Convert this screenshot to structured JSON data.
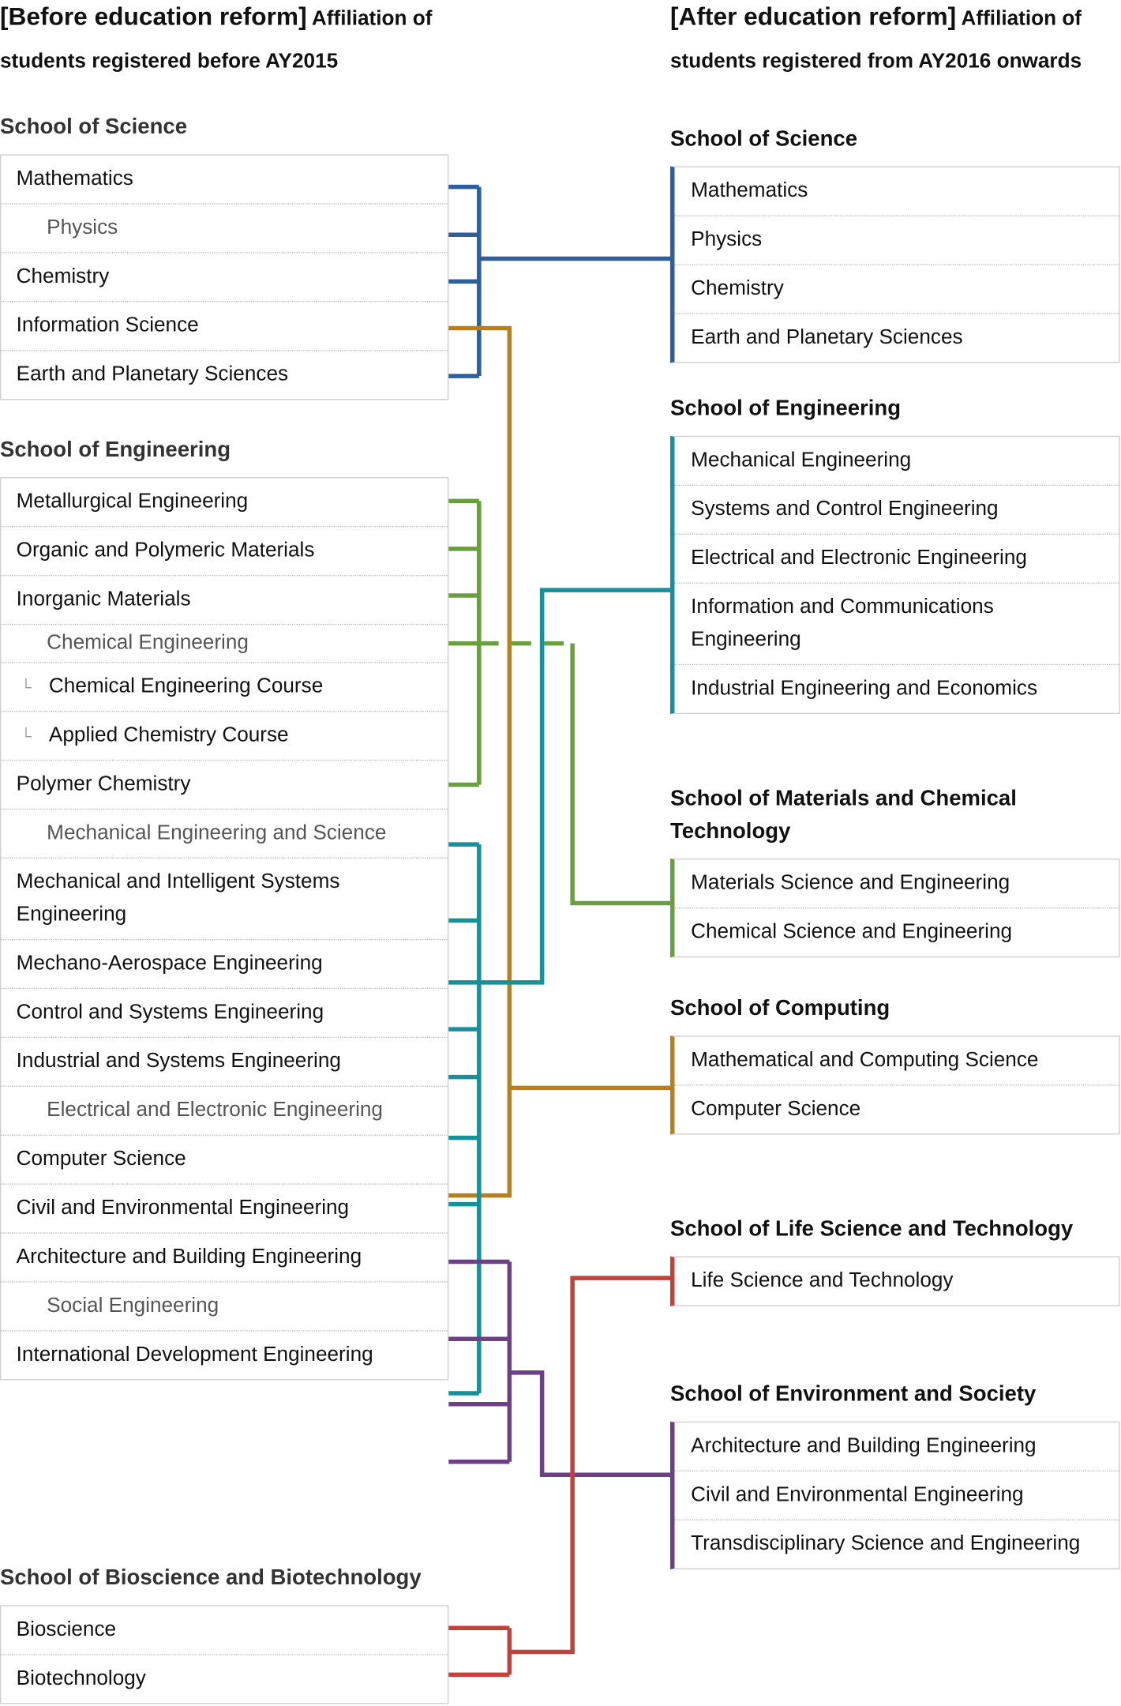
{
  "before": {
    "title_bracket": "[Before education reform]",
    "title_rest": " Affiliation of students registered before AY2015",
    "schools": [
      {
        "name": "School of Science",
        "items": [
          {
            "label": "Mathematics"
          },
          {
            "label": "Physics",
            "indent": true
          },
          {
            "label": "Chemistry"
          },
          {
            "label": "Information Science"
          },
          {
            "label": "Earth and Planetary Sciences"
          }
        ]
      },
      {
        "name": "School of Engineering",
        "items": [
          {
            "label": "Metallurgical Engineering"
          },
          {
            "label": "Organic and Polymeric Materials"
          },
          {
            "label": "Inorganic Materials"
          },
          {
            "label": "Chemical Engineering",
            "indent": true,
            "short": true
          },
          {
            "label": "Chemical Engineering Course",
            "sub": true
          },
          {
            "label": "Applied Chemistry Course",
            "sub": true
          },
          {
            "label": "Polymer Chemistry"
          },
          {
            "label": "Mechanical Engineering and Science",
            "indent": true
          },
          {
            "label": "Mechanical and Intelligent Systems Engineering"
          },
          {
            "label": "Mechano-Aerospace Engineering"
          },
          {
            "label": "Control and Systems Engineering"
          },
          {
            "label": "Industrial and Systems Engineering"
          },
          {
            "label": "Electrical and Electronic Engineering",
            "indent": true
          },
          {
            "label": "Computer Science"
          },
          {
            "label": "Civil and Environmental Engineering"
          },
          {
            "label": "Architecture and Building Engineering"
          },
          {
            "label": "Social Engineering",
            "indent": true
          },
          {
            "label": "International Development Engineering"
          }
        ]
      },
      {
        "name": "School of Bioscience and Biotechnology",
        "items": [
          {
            "label": "Bioscience"
          },
          {
            "label": "Biotechnology"
          }
        ]
      }
    ],
    "sub_mark": "└"
  },
  "after": {
    "title_bracket": "[After education reform]",
    "title_rest": " Affiliation of students registered from AY2016 onwards",
    "schools": [
      {
        "name": "School of Science",
        "color": "#2f5f9b",
        "items": [
          {
            "label": "Mathematics"
          },
          {
            "label": "Physics"
          },
          {
            "label": "Chemistry"
          },
          {
            "label": "Earth and Planetary Sciences"
          }
        ]
      },
      {
        "name": "School of Engineering",
        "color": "#17909a",
        "items": [
          {
            "label": "Mechanical Engineering"
          },
          {
            "label": "Systems and Control Engineering"
          },
          {
            "label": "Electrical and Electronic Engineering"
          },
          {
            "label": "Information and Communications Engineering"
          },
          {
            "label": "Industrial Engineering and Economics"
          }
        ]
      },
      {
        "name": "School of Materials and Chemical Technology",
        "color": "#6a9f40",
        "items": [
          {
            "label": "Materials Science and Engineering"
          },
          {
            "label": "Chemical Science and Engineering"
          }
        ]
      },
      {
        "name": "School of Computing",
        "color": "#b7801a",
        "items": [
          {
            "label": "Mathematical and Computing Science"
          },
          {
            "label": "Computer Science"
          }
        ]
      },
      {
        "name": "School of Life Science and Technology",
        "color": "#c2413b",
        "items": [
          {
            "label": "Life Science and Technology"
          }
        ]
      },
      {
        "name": "School of Environment and Society",
        "color": "#6c3f87",
        "items": [
          {
            "label": "Architecture and Building Engineering"
          },
          {
            "label": "Civil and Environmental Engineering"
          },
          {
            "label": "Transdisciplinary Science and Engineering"
          }
        ]
      }
    ]
  },
  "colors": {
    "science": "#2f5f9b",
    "computing": "#b7801a",
    "materials": "#6a9f40",
    "engineering": "#17909a",
    "environment": "#6c3f87",
    "life": "#c2413b"
  }
}
